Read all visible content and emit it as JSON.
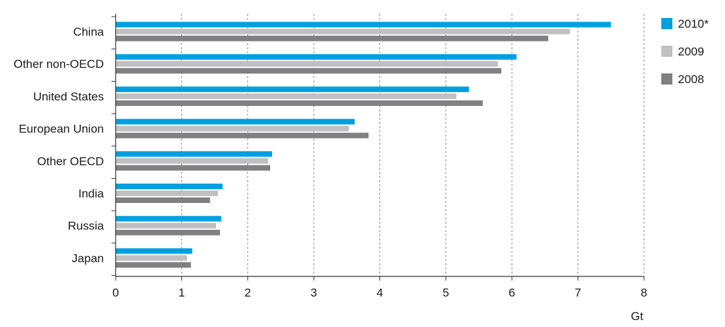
{
  "chart_data": {
    "type": "bar",
    "orientation": "horizontal",
    "categories": [
      "China",
      "Other non-OECD",
      "United States",
      "European Union",
      "Other OECD",
      "India",
      "Russia",
      "Japan"
    ],
    "series": [
      {
        "name": "2010*",
        "color": "#00a0e0",
        "values": [
          7.5,
          6.07,
          5.35,
          3.62,
          2.37,
          1.62,
          1.6,
          1.16
        ]
      },
      {
        "name": "2009",
        "color": "#c0c0c2",
        "values": [
          6.88,
          5.79,
          5.16,
          3.53,
          2.31,
          1.55,
          1.52,
          1.08
        ]
      },
      {
        "name": "2008",
        "color": "#808082",
        "values": [
          6.55,
          5.84,
          5.56,
          3.83,
          2.34,
          1.43,
          1.58,
          1.14
        ]
      }
    ],
    "xlim": [
      0,
      8
    ],
    "xticks": [
      "0",
      "1",
      "2",
      "3",
      "4",
      "5",
      "6",
      "7",
      "8"
    ],
    "xlabel": "Gt",
    "grid": "vertical dashed",
    "legend_position": "right"
  }
}
